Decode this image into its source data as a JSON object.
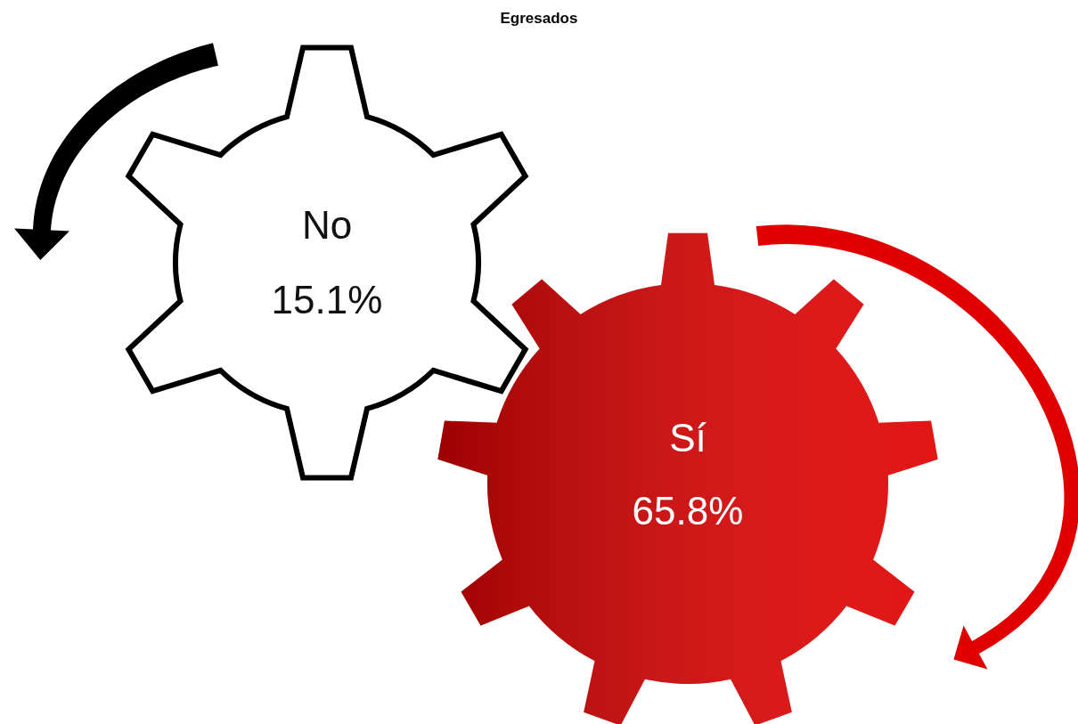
{
  "chart_data": {
    "type": "other",
    "title": "Egresados",
    "categories": [
      "No",
      "Sí"
    ],
    "values": [
      15.1,
      65.8
    ],
    "value_labels": [
      "15.1%",
      "65.8%"
    ],
    "colors": [
      "#000000",
      "#e00000"
    ]
  }
}
